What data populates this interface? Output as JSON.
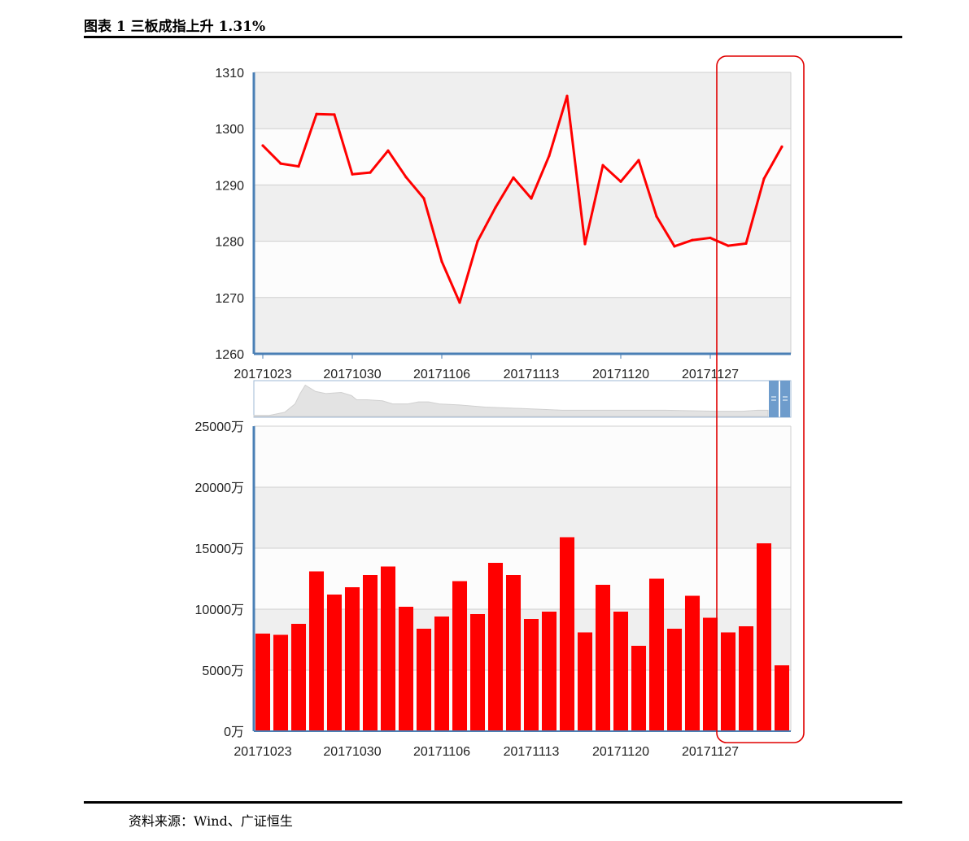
{
  "header": {
    "title": "图表 1 三板成指上升 1.31%"
  },
  "footer": {
    "source": "资料来源：Wind、广证恒生"
  },
  "colors": {
    "series": "#ff0000",
    "axis": "#4a7fb5",
    "band_dark": "#efefef",
    "band_light": "#fcfcfc",
    "highlight": "#e00000",
    "navigator": "#6e9ccc"
  },
  "chart_data": [
    {
      "type": "line",
      "x_tick_labels": [
        "20171023",
        "20171030",
        "20171106",
        "20171113",
        "20171120",
        "20171127"
      ],
      "y_tick_labels": [
        "1260",
        "1270",
        "1280",
        "1290",
        "1300",
        "1310"
      ],
      "ylim": [
        1260,
        1310
      ],
      "grid": true,
      "values": [
        1297.0,
        1293.8,
        1293.3,
        1302.6,
        1302.5,
        1291.9,
        1292.2,
        1296.1,
        1291.4,
        1287.6,
        1276.4,
        1269.1,
        1280.0,
        1286.0,
        1291.3,
        1287.6,
        1295.2,
        1305.8,
        1279.5,
        1293.5,
        1290.6,
        1294.4,
        1284.4,
        1279.1,
        1280.2,
        1280.6,
        1279.2,
        1279.6,
        1291.1,
        1296.8
      ]
    },
    {
      "type": "bar",
      "x_tick_labels": [
        "20171023",
        "20171030",
        "20171106",
        "20171113",
        "20171120",
        "20171127"
      ],
      "y_tick_labels": [
        "0万",
        "5000万",
        "10000万",
        "15000万",
        "20000万",
        "25000万"
      ],
      "ylim": [
        0,
        25000
      ],
      "unit": "万",
      "grid": true,
      "values": [
        8000,
        7900,
        8800,
        13100,
        11200,
        11800,
        12800,
        13500,
        10200,
        8400,
        9400,
        12300,
        9600,
        13800,
        12800,
        9200,
        9800,
        15900,
        8100,
        12000,
        9800,
        7000,
        12500,
        8400,
        11100,
        9300,
        8100,
        8600,
        15400,
        5400
      ]
    }
  ]
}
